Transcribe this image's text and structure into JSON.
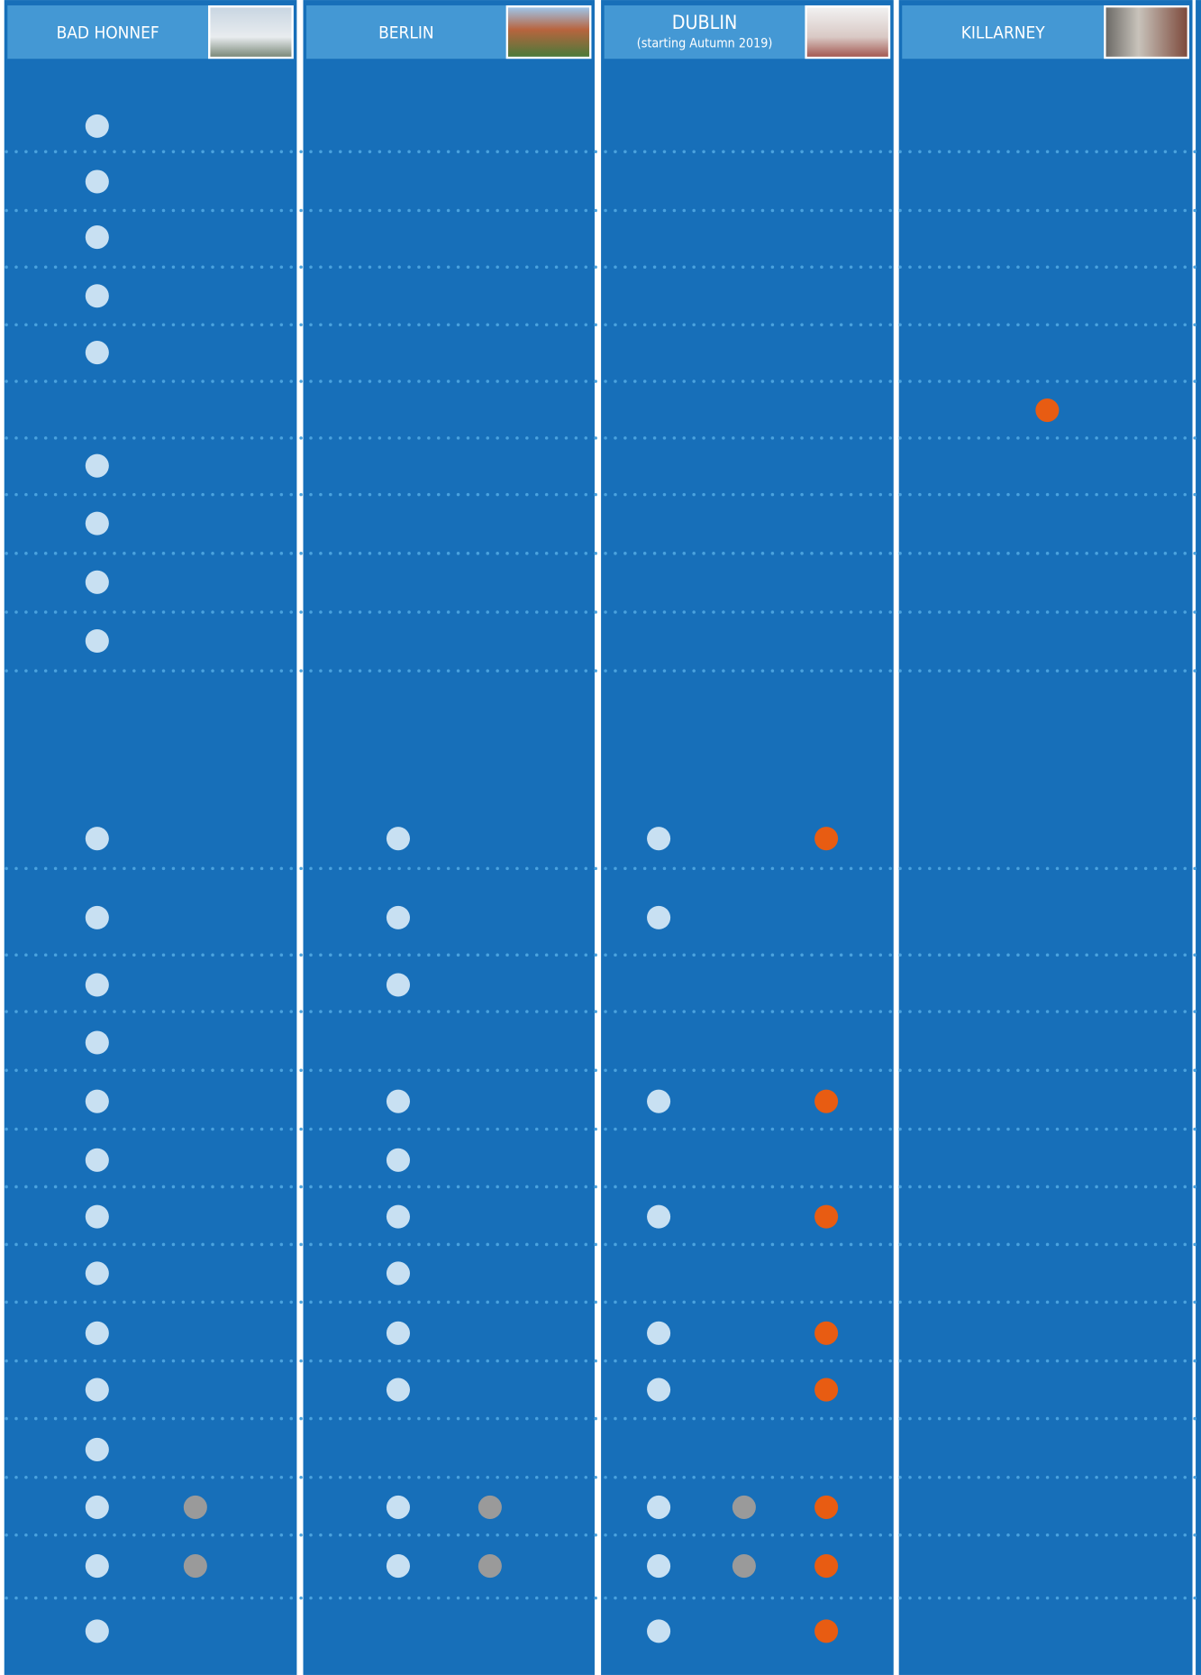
{
  "header": {
    "columns": [
      {
        "title": "BAD HONNEF"
      },
      {
        "title": "BERLIN"
      },
      {
        "title": "DUBLIN",
        "subtitle": "(starting Autumn 2019)"
      },
      {
        "title": "KILLARNEY"
      }
    ]
  }
}
